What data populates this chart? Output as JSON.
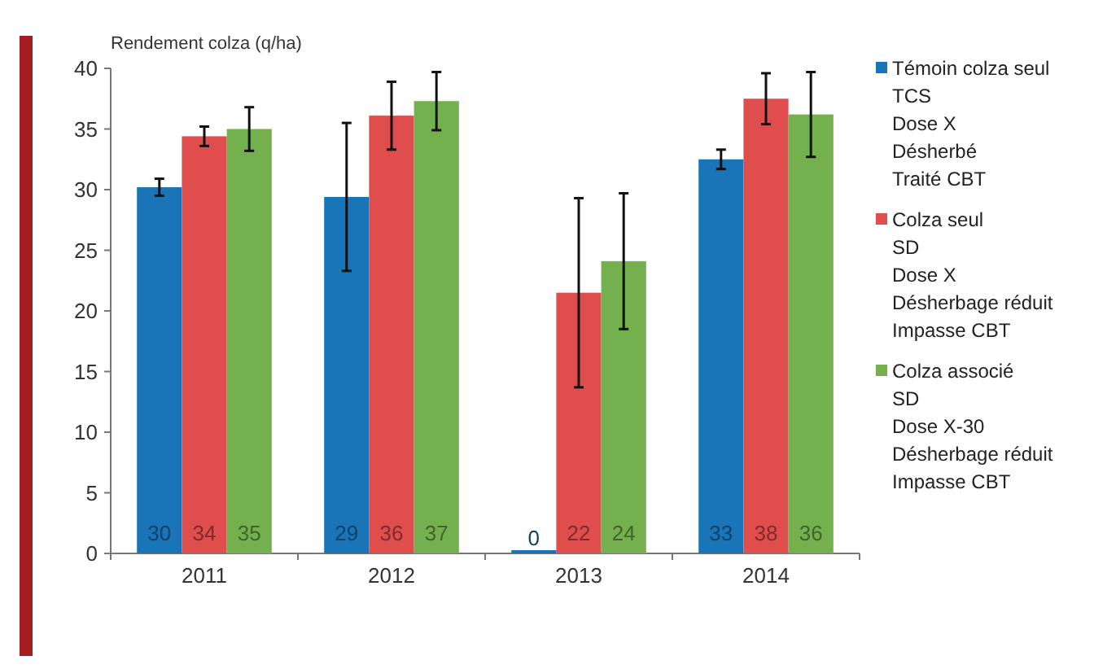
{
  "chart_data": {
    "type": "bar",
    "ylabel": "Rendement colza (q/ha)",
    "categories": [
      "2011",
      "2012",
      "2013",
      "2014"
    ],
    "ylim": [
      0,
      40
    ],
    "yticks": [
      0,
      5,
      10,
      15,
      20,
      25,
      30,
      35,
      40
    ],
    "grid": false,
    "legend": "right",
    "series": [
      {
        "name": "Témoin colza seul\nTCS\nDose X\nDésherbé\nTraité CBT",
        "color": "#1a75b8",
        "values": [
          30.2,
          29.4,
          0,
          32.5
        ],
        "errors": [
          0.7,
          6.1,
          null,
          0.8
        ],
        "value_labels": [
          "30",
          "29",
          "0",
          "33"
        ]
      },
      {
        "name": "Colza seul\nSD\nDose X\nDésherbage réduit\nImpasse CBT",
        "color": "#e04d4d",
        "values": [
          34.4,
          36.1,
          21.5,
          37.5
        ],
        "errors": [
          0.8,
          2.8,
          7.8,
          2.1
        ],
        "value_labels": [
          "34",
          "36",
          "22",
          "38"
        ]
      },
      {
        "name": "Colza associé\nSD\nDose X-30\nDésherbage réduit\nImpasse CBT",
        "color": "#74b14e",
        "values": [
          35.0,
          37.3,
          24.1,
          36.2
        ],
        "errors": [
          1.8,
          2.4,
          5.6,
          3.5
        ],
        "value_labels": [
          "35",
          "37",
          "24",
          "36"
        ]
      }
    ]
  }
}
